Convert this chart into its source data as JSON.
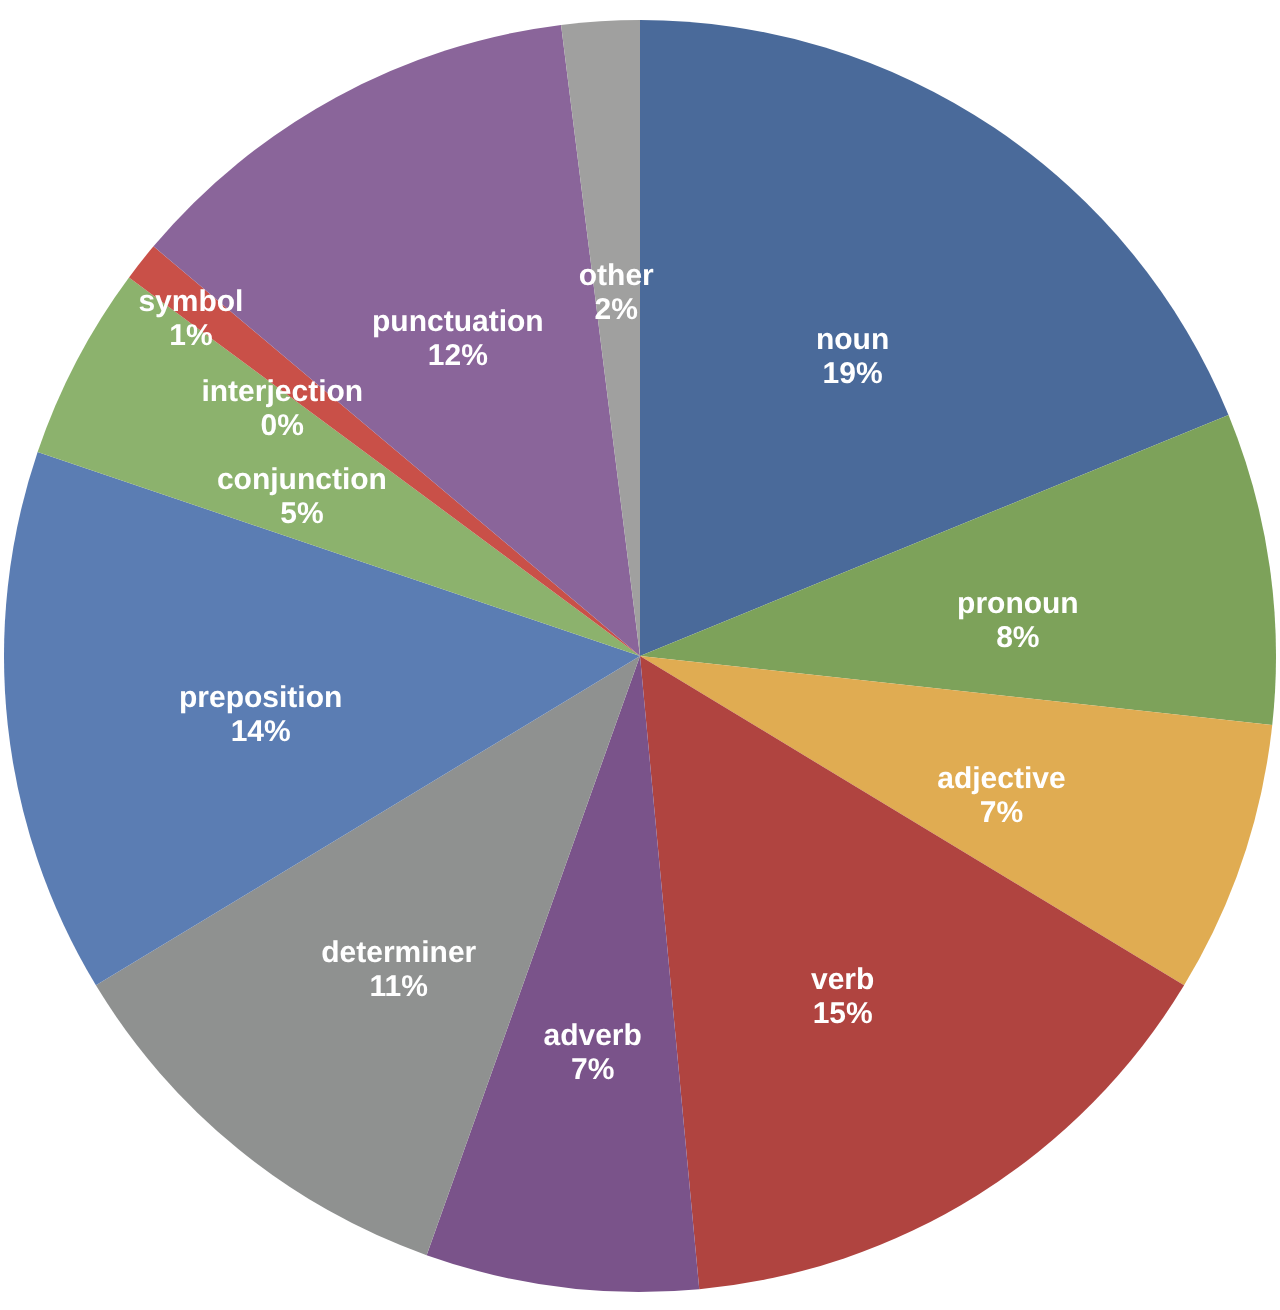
{
  "chart_data": {
    "type": "pie",
    "categories": [
      "noun",
      "pronoun",
      "adjective",
      "verb",
      "adverb",
      "determiner",
      "preposition",
      "conjunction",
      "interjection",
      "symbol",
      "punctuation",
      "other"
    ],
    "values": [
      19,
      8,
      7,
      15,
      7,
      11,
      14,
      5,
      0,
      1,
      12,
      2
    ],
    "value_labels": [
      "19%",
      "8%",
      "7%",
      "15%",
      "7%",
      "11%",
      "14%",
      "5%",
      "0%",
      "1%",
      "12%",
      "2%"
    ],
    "colors": [
      "#4a6a9a",
      "#7da25a",
      "#e0ac52",
      "#b04440",
      "#7a538a",
      "#8f9190",
      "#5b7db3",
      "#8cb26d",
      "#7fa865",
      "#c95048",
      "#8a659a",
      "#a0a09f"
    ]
  }
}
